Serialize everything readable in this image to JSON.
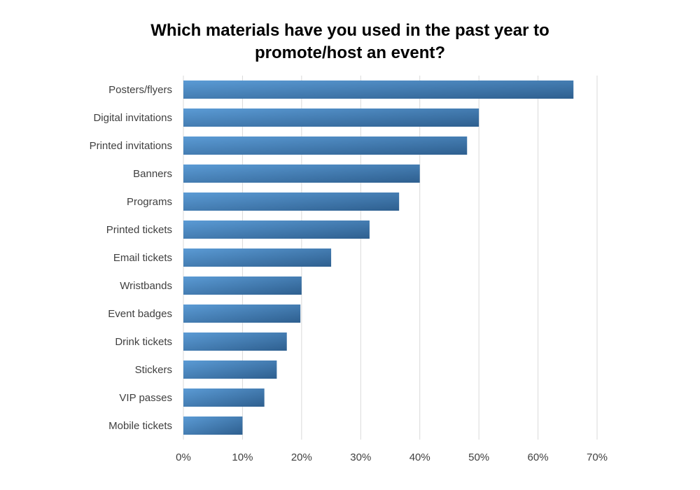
{
  "chart_data": {
    "type": "bar",
    "orientation": "horizontal",
    "title": "Which materials have you used in the past year to promote/host an event?",
    "categories": [
      "Posters/flyers",
      "Digital invitations",
      "Printed invitations",
      "Banners",
      "Programs",
      "Printed tickets",
      "Email tickets",
      "Wristbands",
      "Event badges",
      "Drink tickets",
      "Stickers",
      "VIP passes",
      "Mobile tickets"
    ],
    "values": [
      66,
      50,
      48,
      40,
      36.5,
      31.5,
      25,
      20,
      19.8,
      17.5,
      15.8,
      13.7,
      10
    ],
    "value_unit": "percent",
    "xlim": [
      0,
      70
    ],
    "xticks": [
      0,
      10,
      20,
      30,
      40,
      50,
      60,
      70
    ],
    "xtick_labels": [
      "0%",
      "10%",
      "20%",
      "30%",
      "40%",
      "50%",
      "60%",
      "70%"
    ],
    "xlabel": "",
    "ylabel": "",
    "grid": "vertical",
    "legend": "none",
    "colors": {
      "bar_light": "#5b9bd5",
      "bar_dark": "#2e5f8f",
      "grid": "#d9d9d9",
      "text": "#404040"
    }
  }
}
